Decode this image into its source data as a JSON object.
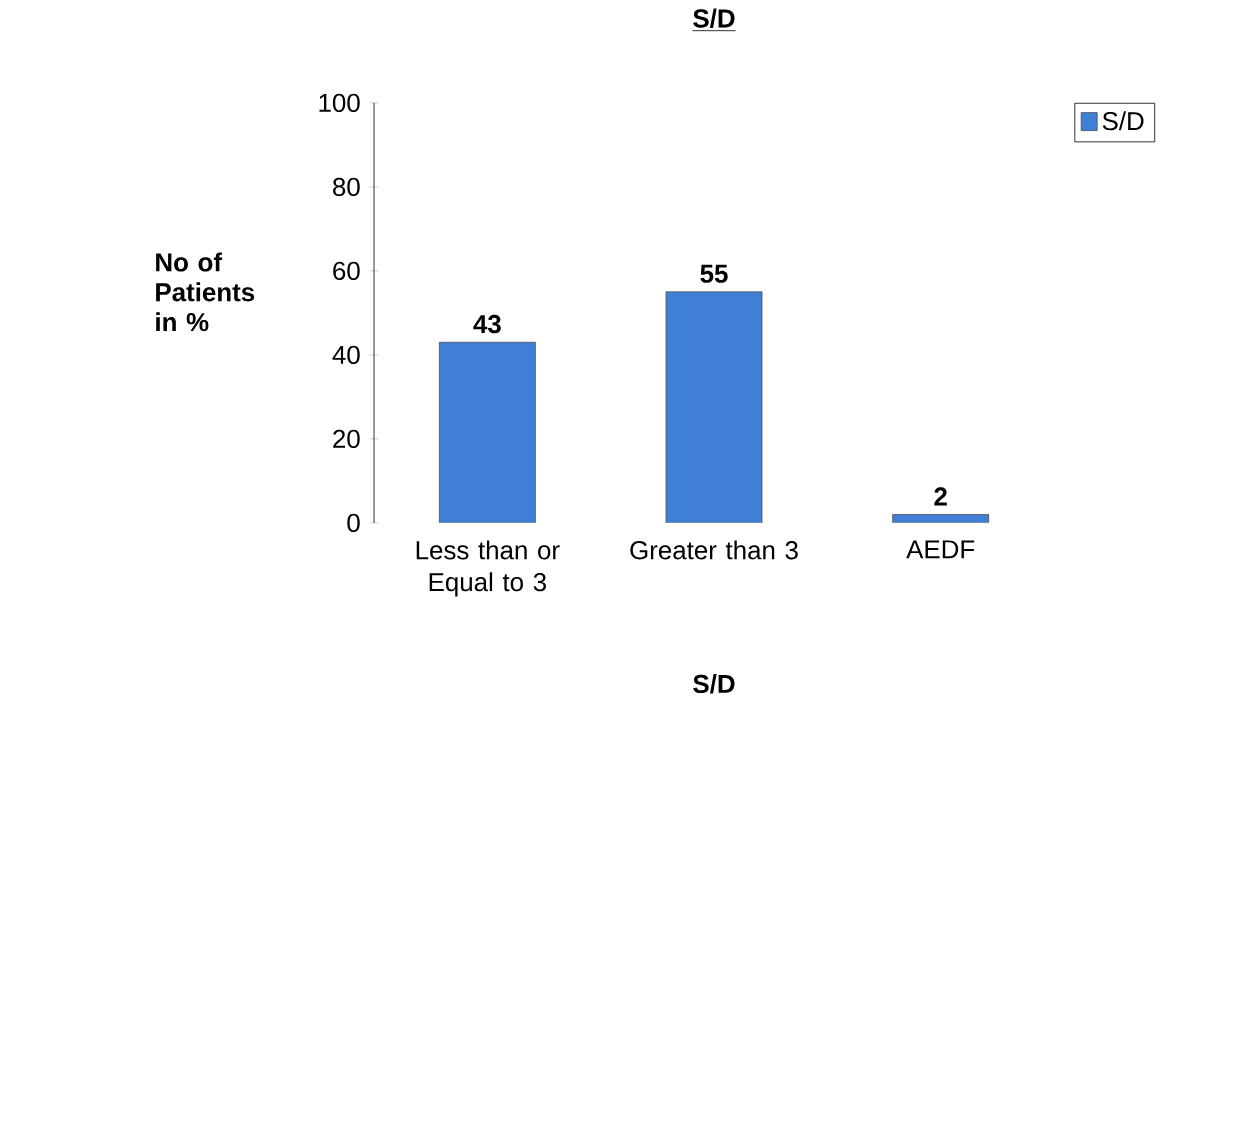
{
  "chart_data": {
    "type": "bar",
    "title": "S/D",
    "xlabel": "S/D",
    "ylabel": "No of Patients in %",
    "categories": [
      "Less than or Equal to 3",
      "Greater than 3",
      "AEDF"
    ],
    "series": [
      {
        "name": "S/D",
        "color": "#3f7fd6",
        "values": [
          43,
          55,
          2
        ]
      }
    ],
    "ylim": [
      0,
      100
    ],
    "yticks": [
      0,
      20,
      40,
      60,
      80,
      100
    ],
    "data_labels": true,
    "legend": "top right",
    "grid": false
  }
}
